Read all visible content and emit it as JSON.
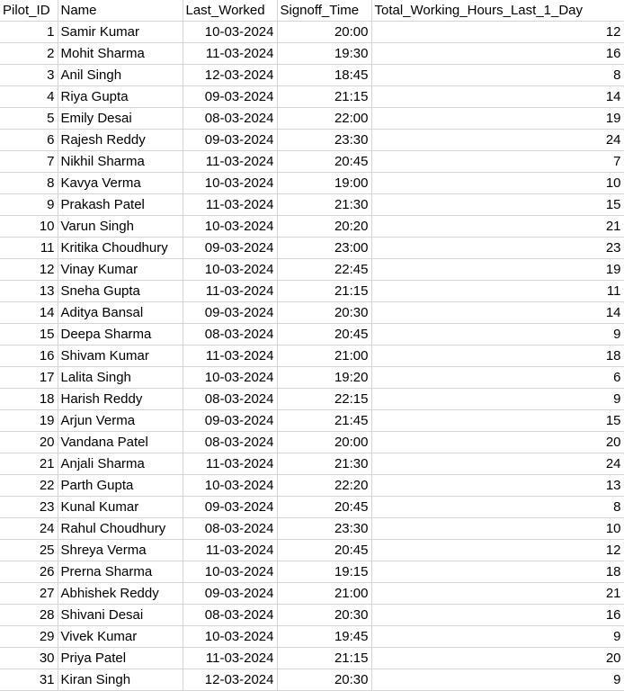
{
  "headers": [
    "Pilot_ID",
    "Name",
    "Last_Worked",
    "Signoff_Time",
    "Total_Working_Hours_Last_1_Day"
  ],
  "rows": [
    {
      "id": "1",
      "name": "Samir Kumar",
      "date": "10-03-2024",
      "time": "20:00",
      "hours": "12"
    },
    {
      "id": "2",
      "name": "Mohit Sharma",
      "date": "11-03-2024",
      "time": "19:30",
      "hours": "16"
    },
    {
      "id": "3",
      "name": "Anil Singh",
      "date": "12-03-2024",
      "time": "18:45",
      "hours": "8"
    },
    {
      "id": "4",
      "name": "Riya Gupta",
      "date": "09-03-2024",
      "time": "21:15",
      "hours": "14"
    },
    {
      "id": "5",
      "name": "Emily Desai",
      "date": "08-03-2024",
      "time": "22:00",
      "hours": "19"
    },
    {
      "id": "6",
      "name": "Rajesh Reddy",
      "date": "09-03-2024",
      "time": "23:30",
      "hours": "24"
    },
    {
      "id": "7",
      "name": "Nikhil Sharma",
      "date": "11-03-2024",
      "time": "20:45",
      "hours": "7"
    },
    {
      "id": "8",
      "name": "Kavya Verma",
      "date": "10-03-2024",
      "time": "19:00",
      "hours": "10"
    },
    {
      "id": "9",
      "name": "Prakash Patel",
      "date": "11-03-2024",
      "time": "21:30",
      "hours": "15"
    },
    {
      "id": "10",
      "name": "Varun Singh",
      "date": "10-03-2024",
      "time": "20:20",
      "hours": "21"
    },
    {
      "id": "11",
      "name": "Kritika Choudhury",
      "date": "09-03-2024",
      "time": "23:00",
      "hours": "23"
    },
    {
      "id": "12",
      "name": "Vinay Kumar",
      "date": "10-03-2024",
      "time": "22:45",
      "hours": "19"
    },
    {
      "id": "13",
      "name": "Sneha Gupta",
      "date": "11-03-2024",
      "time": "21:15",
      "hours": "11"
    },
    {
      "id": "14",
      "name": "Aditya Bansal",
      "date": "09-03-2024",
      "time": "20:30",
      "hours": "14"
    },
    {
      "id": "15",
      "name": "Deepa Sharma",
      "date": "08-03-2024",
      "time": "20:45",
      "hours": "9"
    },
    {
      "id": "16",
      "name": "Shivam Kumar",
      "date": "11-03-2024",
      "time": "21:00",
      "hours": "18"
    },
    {
      "id": "17",
      "name": "Lalita Singh",
      "date": "10-03-2024",
      "time": "19:20",
      "hours": "6"
    },
    {
      "id": "18",
      "name": "Harish Reddy",
      "date": "08-03-2024",
      "time": "22:15",
      "hours": "9"
    },
    {
      "id": "19",
      "name": "Arjun Verma",
      "date": "09-03-2024",
      "time": "21:45",
      "hours": "15"
    },
    {
      "id": "20",
      "name": "Vandana Patel",
      "date": "08-03-2024",
      "time": "20:00",
      "hours": "20"
    },
    {
      "id": "21",
      "name": "Anjali Sharma",
      "date": "11-03-2024",
      "time": "21:30",
      "hours": "24"
    },
    {
      "id": "22",
      "name": "Parth Gupta",
      "date": "10-03-2024",
      "time": "22:20",
      "hours": "13"
    },
    {
      "id": "23",
      "name": "Kunal Kumar",
      "date": "09-03-2024",
      "time": "20:45",
      "hours": "8"
    },
    {
      "id": "24",
      "name": "Rahul Choudhury",
      "date": "08-03-2024",
      "time": "23:30",
      "hours": "10"
    },
    {
      "id": "25",
      "name": "Shreya Verma",
      "date": "11-03-2024",
      "time": "20:45",
      "hours": "12"
    },
    {
      "id": "26",
      "name": "Prerna Sharma",
      "date": "10-03-2024",
      "time": "19:15",
      "hours": "18"
    },
    {
      "id": "27",
      "name": "Abhishek Reddy",
      "date": "09-03-2024",
      "time": "21:00",
      "hours": "21"
    },
    {
      "id": "28",
      "name": "Shivani Desai",
      "date": "08-03-2024",
      "time": "20:30",
      "hours": "16"
    },
    {
      "id": "29",
      "name": "Vivek Kumar",
      "date": "10-03-2024",
      "time": "19:45",
      "hours": "9"
    },
    {
      "id": "30",
      "name": "Priya Patel",
      "date": "11-03-2024",
      "time": "21:15",
      "hours": "20"
    },
    {
      "id": "31",
      "name": "Kiran Singh",
      "date": "12-03-2024",
      "time": "20:30",
      "hours": "9"
    }
  ]
}
